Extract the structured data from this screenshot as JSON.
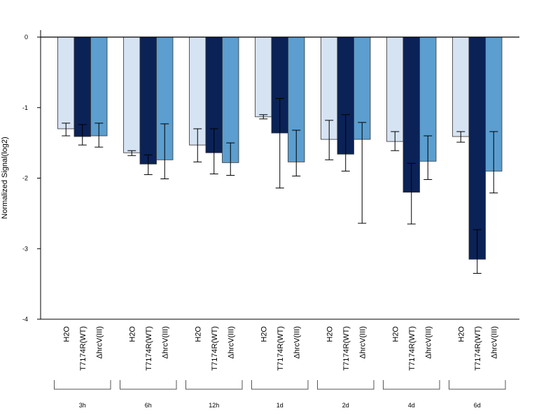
{
  "chart_data": {
    "type": "bar",
    "ylabel": "Normalized Signal(log2)",
    "ylim": [
      -4,
      0
    ],
    "yticks": [
      0,
      -1,
      -2,
      -3,
      -4
    ],
    "grid": false,
    "series_names": [
      "H2O",
      "T7174R(WT)",
      "ΔhrcV(III)"
    ],
    "series_colors": [
      "#d6e3f3",
      "#0b2257",
      "#5b9ecf"
    ],
    "groups": [
      {
        "label": "3h",
        "values": [
          -1.3,
          -1.41,
          -1.4
        ],
        "errors": [
          [
            -1.4,
            -1.22
          ],
          [
            -1.53,
            -1.24
          ],
          [
            -1.56,
            -1.22
          ]
        ]
      },
      {
        "label": "6h",
        "values": [
          -1.64,
          -1.8,
          -1.74
        ],
        "errors": [
          [
            -1.68,
            -1.61
          ],
          [
            -1.95,
            -1.67
          ],
          [
            -2.01,
            -1.23
          ]
        ]
      },
      {
        "label": "12h",
        "values": [
          -1.53,
          -1.64,
          -1.78
        ],
        "errors": [
          [
            -1.77,
            -1.3
          ],
          [
            -1.94,
            -1.3
          ],
          [
            -1.96,
            -1.5
          ]
        ]
      },
      {
        "label": "1d",
        "values": [
          -1.13,
          -1.36,
          -1.77
        ],
        "errors": [
          [
            -1.16,
            -1.1
          ],
          [
            -2.14,
            -0.87
          ],
          [
            -1.97,
            -1.32
          ]
        ]
      },
      {
        "label": "2d",
        "values": [
          -1.45,
          -1.66,
          -1.45
        ],
        "errors": [
          [
            -1.74,
            -1.18
          ],
          [
            -1.9,
            -1.1
          ],
          [
            -2.64,
            -1.21
          ]
        ]
      },
      {
        "label": "4d",
        "values": [
          -1.48,
          -2.2,
          -1.76
        ],
        "errors": [
          [
            -1.61,
            -1.34
          ],
          [
            -2.65,
            -1.79
          ],
          [
            -2.02,
            -1.4
          ]
        ]
      },
      {
        "label": "6d",
        "values": [
          -1.41,
          -3.15,
          -1.9
        ],
        "errors": [
          [
            -1.49,
            -1.34
          ],
          [
            -3.35,
            -2.73
          ],
          [
            -2.21,
            -1.34
          ]
        ]
      }
    ]
  }
}
